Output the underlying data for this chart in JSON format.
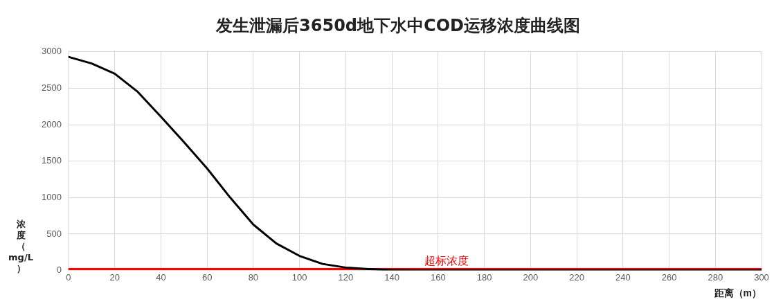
{
  "chart_data": {
    "type": "line",
    "title": "发生泄漏后3650d地下水中COD运移浓度曲线图",
    "xlabel": "距离（m）",
    "ylabel": "浓度（mg/L）",
    "series": [
      {
        "color": "#000000",
        "x": [
          0,
          10,
          20,
          30,
          40,
          50,
          60,
          70,
          80,
          90,
          100,
          110,
          120,
          130,
          140,
          150,
          200,
          250,
          300
        ],
        "values": [
          2930,
          2840,
          2700,
          2450,
          2110,
          1760,
          1400,
          1000,
          630,
          370,
          200,
          90,
          40,
          20,
          5,
          0,
          0,
          0,
          0
        ]
      },
      {
        "name": "超标浓度",
        "color": "#ff0000",
        "x": [
          0,
          300
        ],
        "values": [
          20,
          20
        ]
      }
    ],
    "xlim": [
      0,
      300
    ],
    "xticks": [
      0,
      20,
      40,
      60,
      80,
      100,
      120,
      140,
      160,
      180,
      200,
      220,
      240,
      260,
      280,
      300
    ],
    "ylim": [
      0,
      3000
    ],
    "yticks": [
      0,
      500,
      1000,
      1500,
      2000,
      2500,
      3000
    ],
    "grid": true,
    "legend": false,
    "marker": "none",
    "line_style": "solid"
  }
}
